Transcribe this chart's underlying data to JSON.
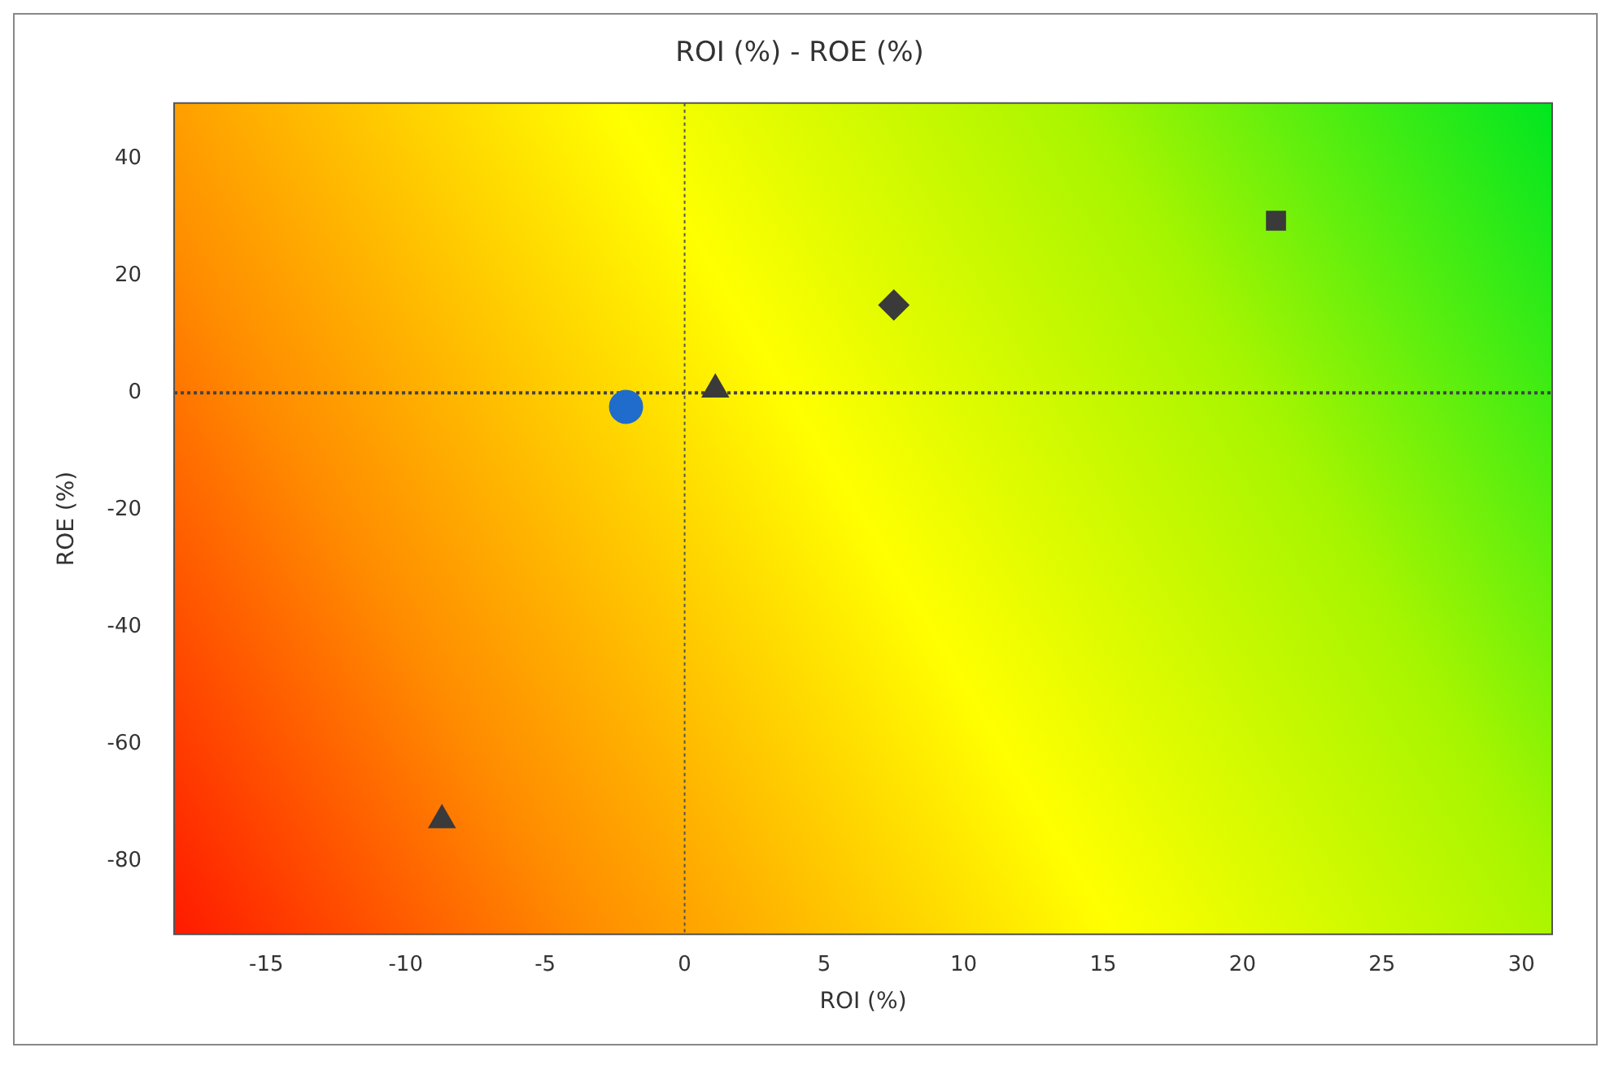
{
  "chart_data": {
    "type": "scatter",
    "title": "ROI (%) - ROE (%)",
    "xlabel": "ROI (%)",
    "ylabel": "ROE (%)",
    "xlim": [
      -18.3,
      31.1
    ],
    "xticks": [
      -15,
      -10,
      -5,
      0,
      5,
      10,
      15,
      20,
      25,
      30
    ],
    "ylim": [
      -92.5,
      49.5
    ],
    "yticks": [
      -80,
      -60,
      -40,
      -20,
      0,
      20,
      40
    ],
    "grid": false,
    "legend": false,
    "ref_lines": [
      {
        "axis": "x",
        "value": 0,
        "color": "#555555",
        "line_style": "dotted"
      },
      {
        "axis": "y",
        "value": 0,
        "color": "#444444",
        "line_style": "dotted"
      }
    ],
    "series": [
      {
        "color": "#1f6ccc",
        "marker": "circle",
        "x": [
          -2.1
        ],
        "values": [
          -2.4
        ]
      },
      {
        "color": "#3a3a3a",
        "marker": "triangle",
        "x": [
          1.1
        ],
        "values": [
          0.6
        ]
      },
      {
        "color": "#3a3a3a",
        "marker": "diamond",
        "x": [
          7.5
        ],
        "values": [
          15
        ]
      },
      {
        "color": "#3a3a3a",
        "marker": "square",
        "x": [
          21.2
        ],
        "values": [
          29.4
        ]
      },
      {
        "color": "#3a3a3a",
        "marker": "triangle",
        "x": [
          -8.7
        ],
        "values": [
          -73
        ]
      }
    ]
  }
}
